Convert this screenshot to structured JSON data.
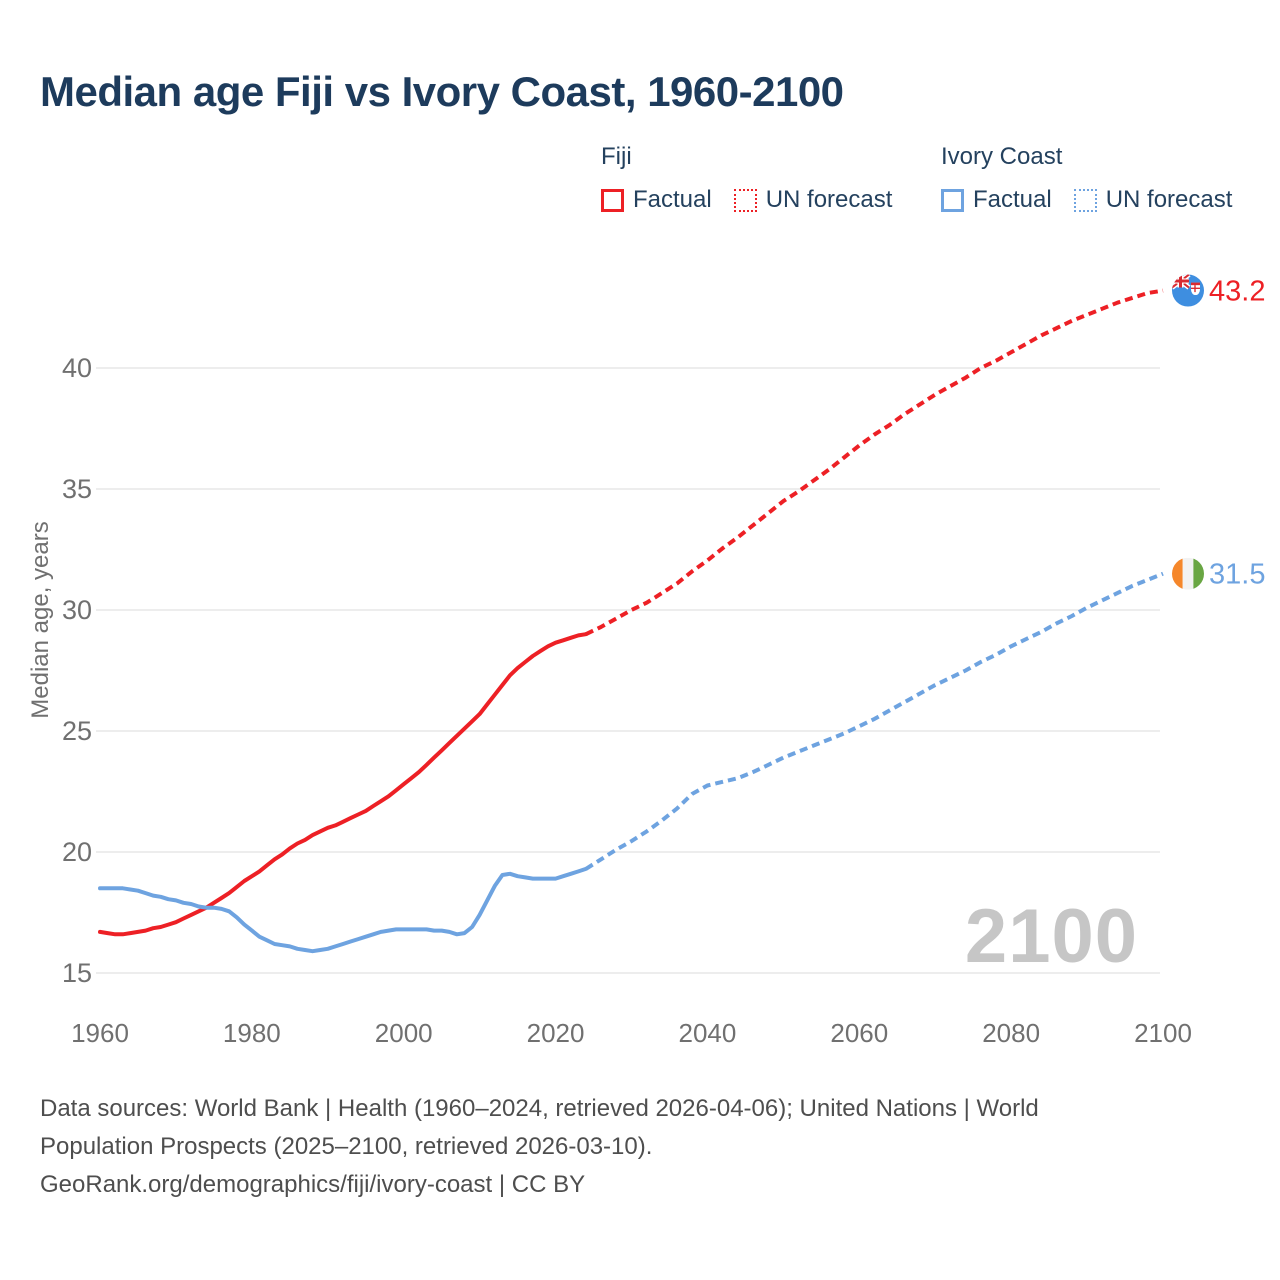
{
  "title": "Median age Fiji vs Ivory Coast, 1960-2100",
  "legend": {
    "groups": [
      {
        "title": "Fiji",
        "items": [
          {
            "label": "Factual",
            "style": "solid",
            "color": "#ed2025"
          },
          {
            "label": "UN forecast",
            "style": "dotted",
            "color": "#ed2025"
          }
        ]
      },
      {
        "title": "Ivory Coast",
        "items": [
          {
            "label": "Factual",
            "style": "solid",
            "color": "#6ea3e0"
          },
          {
            "label": "UN forecast",
            "style": "dotted",
            "color": "#6ea3e0"
          }
        ]
      }
    ]
  },
  "watermark": "2100",
  "footer": {
    "line1": "Data sources: World Bank | Health (1960–2024, retrieved 2026-04-06); United Nations | World",
    "line2": "Population Prospects (2025–2100, retrieved 2026-03-10).",
    "line3": "GeoRank.org/demographics/fiji/ivory-coast | CC BY"
  },
  "chart_data": {
    "type": "line",
    "title": "Median age Fiji vs Ivory Coast, 1960-2100",
    "xlabel": "",
    "ylabel": "Median age, years",
    "x_ticks": [
      1960,
      1980,
      2000,
      2020,
      2040,
      2060,
      2080,
      2100
    ],
    "y_ticks": [
      15,
      20,
      25,
      30,
      35,
      40
    ],
    "xlim": [
      1960,
      2100
    ],
    "ylim": [
      15,
      44.5
    ],
    "grid": true,
    "legend_position": "top",
    "colors": {
      "fiji": "#ed2025",
      "ivory_coast": "#6ea3e0",
      "grid": "#e7e7e7",
      "axis_text": "#707070",
      "watermark": "#c6c6c6",
      "title_text": "#1d3b5c"
    },
    "series": [
      {
        "name": "Fiji Factual",
        "color": "#ed2025",
        "dash": false,
        "points": [
          [
            1960,
            16.7
          ],
          [
            1961,
            16.65
          ],
          [
            1962,
            16.6
          ],
          [
            1963,
            16.6
          ],
          [
            1964,
            16.65
          ],
          [
            1965,
            16.7
          ],
          [
            1966,
            16.75
          ],
          [
            1967,
            16.85
          ],
          [
            1968,
            16.9
          ],
          [
            1969,
            17.0
          ],
          [
            1970,
            17.1
          ],
          [
            1971,
            17.25
          ],
          [
            1972,
            17.4
          ],
          [
            1973,
            17.55
          ],
          [
            1974,
            17.7
          ],
          [
            1975,
            17.9
          ],
          [
            1976,
            18.1
          ],
          [
            1977,
            18.3
          ],
          [
            1978,
            18.55
          ],
          [
            1979,
            18.8
          ],
          [
            1980,
            19.0
          ],
          [
            1981,
            19.2
          ],
          [
            1982,
            19.45
          ],
          [
            1983,
            19.7
          ],
          [
            1984,
            19.9
          ],
          [
            1985,
            20.15
          ],
          [
            1986,
            20.35
          ],
          [
            1987,
            20.5
          ],
          [
            1988,
            20.7
          ],
          [
            1989,
            20.85
          ],
          [
            1990,
            21.0
          ],
          [
            1991,
            21.1
          ],
          [
            1992,
            21.25
          ],
          [
            1993,
            21.4
          ],
          [
            1994,
            21.55
          ],
          [
            1995,
            21.7
          ],
          [
            1996,
            21.9
          ],
          [
            1997,
            22.1
          ],
          [
            1998,
            22.3
          ],
          [
            1999,
            22.55
          ],
          [
            2000,
            22.8
          ],
          [
            2001,
            23.05
          ],
          [
            2002,
            23.3
          ],
          [
            2003,
            23.6
          ],
          [
            2004,
            23.9
          ],
          [
            2005,
            24.2
          ],
          [
            2006,
            24.5
          ],
          [
            2007,
            24.8
          ],
          [
            2008,
            25.1
          ],
          [
            2009,
            25.4
          ],
          [
            2010,
            25.7
          ],
          [
            2011,
            26.1
          ],
          [
            2012,
            26.5
          ],
          [
            2013,
            26.9
          ],
          [
            2014,
            27.3
          ],
          [
            2015,
            27.6
          ],
          [
            2016,
            27.85
          ],
          [
            2017,
            28.1
          ],
          [
            2018,
            28.3
          ],
          [
            2019,
            28.5
          ],
          [
            2020,
            28.65
          ],
          [
            2021,
            28.75
          ],
          [
            2022,
            28.85
          ],
          [
            2023,
            28.95
          ],
          [
            2024,
            29.0
          ]
        ]
      },
      {
        "name": "Fiji UN forecast",
        "color": "#ed2025",
        "dash": true,
        "points": [
          [
            2024,
            29.0
          ],
          [
            2026,
            29.3
          ],
          [
            2028,
            29.65
          ],
          [
            2030,
            30.0
          ],
          [
            2032,
            30.3
          ],
          [
            2034,
            30.7
          ],
          [
            2036,
            31.1
          ],
          [
            2038,
            31.6
          ],
          [
            2040,
            32.05
          ],
          [
            2042,
            32.55
          ],
          [
            2044,
            33.0
          ],
          [
            2046,
            33.5
          ],
          [
            2048,
            34.0
          ],
          [
            2050,
            34.5
          ],
          [
            2052,
            34.9
          ],
          [
            2054,
            35.35
          ],
          [
            2056,
            35.8
          ],
          [
            2058,
            36.3
          ],
          [
            2060,
            36.8
          ],
          [
            2062,
            37.25
          ],
          [
            2064,
            37.65
          ],
          [
            2066,
            38.1
          ],
          [
            2068,
            38.5
          ],
          [
            2070,
            38.9
          ],
          [
            2072,
            39.25
          ],
          [
            2074,
            39.6
          ],
          [
            2076,
            40.0
          ],
          [
            2078,
            40.3
          ],
          [
            2080,
            40.65
          ],
          [
            2082,
            41.0
          ],
          [
            2084,
            41.35
          ],
          [
            2086,
            41.65
          ],
          [
            2088,
            41.95
          ],
          [
            2090,
            42.2
          ],
          [
            2092,
            42.45
          ],
          [
            2094,
            42.7
          ],
          [
            2096,
            42.9
          ],
          [
            2098,
            43.1
          ],
          [
            2100,
            43.2
          ]
        ]
      },
      {
        "name": "Ivory Coast Factual",
        "color": "#6ea3e0",
        "dash": false,
        "points": [
          [
            1960,
            18.5
          ],
          [
            1961,
            18.5
          ],
          [
            1962,
            18.5
          ],
          [
            1963,
            18.5
          ],
          [
            1964,
            18.45
          ],
          [
            1965,
            18.4
          ],
          [
            1966,
            18.3
          ],
          [
            1967,
            18.2
          ],
          [
            1968,
            18.15
          ],
          [
            1969,
            18.05
          ],
          [
            1970,
            18.0
          ],
          [
            1971,
            17.9
          ],
          [
            1972,
            17.85
          ],
          [
            1973,
            17.75
          ],
          [
            1974,
            17.7
          ],
          [
            1975,
            17.7
          ],
          [
            1976,
            17.65
          ],
          [
            1977,
            17.55
          ],
          [
            1978,
            17.3
          ],
          [
            1979,
            17.0
          ],
          [
            1980,
            16.75
          ],
          [
            1981,
            16.5
          ],
          [
            1982,
            16.35
          ],
          [
            1983,
            16.2
          ],
          [
            1984,
            16.15
          ],
          [
            1985,
            16.1
          ],
          [
            1986,
            16.0
          ],
          [
            1987,
            15.95
          ],
          [
            1988,
            15.9
          ],
          [
            1989,
            15.95
          ],
          [
            1990,
            16.0
          ],
          [
            1991,
            16.1
          ],
          [
            1992,
            16.2
          ],
          [
            1993,
            16.3
          ],
          [
            1994,
            16.4
          ],
          [
            1995,
            16.5
          ],
          [
            1996,
            16.6
          ],
          [
            1997,
            16.7
          ],
          [
            1998,
            16.75
          ],
          [
            1999,
            16.8
          ],
          [
            2000,
            16.8
          ],
          [
            2001,
            16.8
          ],
          [
            2002,
            16.8
          ],
          [
            2003,
            16.8
          ],
          [
            2004,
            16.75
          ],
          [
            2005,
            16.75
          ],
          [
            2006,
            16.7
          ],
          [
            2007,
            16.6
          ],
          [
            2008,
            16.65
          ],
          [
            2009,
            16.9
          ],
          [
            2010,
            17.4
          ],
          [
            2011,
            18.0
          ],
          [
            2012,
            18.6
          ],
          [
            2013,
            19.05
          ],
          [
            2014,
            19.1
          ],
          [
            2015,
            19.0
          ],
          [
            2016,
            18.95
          ],
          [
            2017,
            18.9
          ],
          [
            2018,
            18.9
          ],
          [
            2019,
            18.9
          ],
          [
            2020,
            18.9
          ],
          [
            2021,
            19.0
          ],
          [
            2022,
            19.1
          ],
          [
            2023,
            19.2
          ],
          [
            2024,
            19.3
          ]
        ]
      },
      {
        "name": "Ivory Coast UN forecast",
        "color": "#6ea3e0",
        "dash": true,
        "points": [
          [
            2024,
            19.3
          ],
          [
            2026,
            19.7
          ],
          [
            2028,
            20.1
          ],
          [
            2030,
            20.45
          ],
          [
            2032,
            20.85
          ],
          [
            2034,
            21.3
          ],
          [
            2036,
            21.8
          ],
          [
            2038,
            22.4
          ],
          [
            2040,
            22.75
          ],
          [
            2042,
            22.9
          ],
          [
            2044,
            23.05
          ],
          [
            2046,
            23.3
          ],
          [
            2048,
            23.6
          ],
          [
            2050,
            23.9
          ],
          [
            2052,
            24.15
          ],
          [
            2054,
            24.4
          ],
          [
            2056,
            24.65
          ],
          [
            2058,
            24.9
          ],
          [
            2060,
            25.2
          ],
          [
            2062,
            25.5
          ],
          [
            2064,
            25.85
          ],
          [
            2066,
            26.2
          ],
          [
            2068,
            26.55
          ],
          [
            2070,
            26.9
          ],
          [
            2072,
            27.2
          ],
          [
            2074,
            27.5
          ],
          [
            2076,
            27.85
          ],
          [
            2078,
            28.15
          ],
          [
            2080,
            28.5
          ],
          [
            2082,
            28.8
          ],
          [
            2084,
            29.1
          ],
          [
            2086,
            29.45
          ],
          [
            2088,
            29.75
          ],
          [
            2090,
            30.1
          ],
          [
            2092,
            30.4
          ],
          [
            2094,
            30.7
          ],
          [
            2096,
            31.0
          ],
          [
            2098,
            31.25
          ],
          [
            2100,
            31.5
          ]
        ]
      }
    ],
    "end_labels": [
      {
        "series": "fiji",
        "value": "43.2",
        "color": "#ed2025",
        "flag": "fiji"
      },
      {
        "series": "ivory_coast",
        "value": "31.5",
        "color": "#6ea3e0",
        "flag": "ivory-coast"
      }
    ],
    "flag_colors": {
      "fiji_field": "#3e8ee0",
      "fiji_red": "#d92b31",
      "ivory_orange": "#f5872b",
      "ivory_white": "#f2f2f2",
      "ivory_green": "#69a643"
    }
  }
}
